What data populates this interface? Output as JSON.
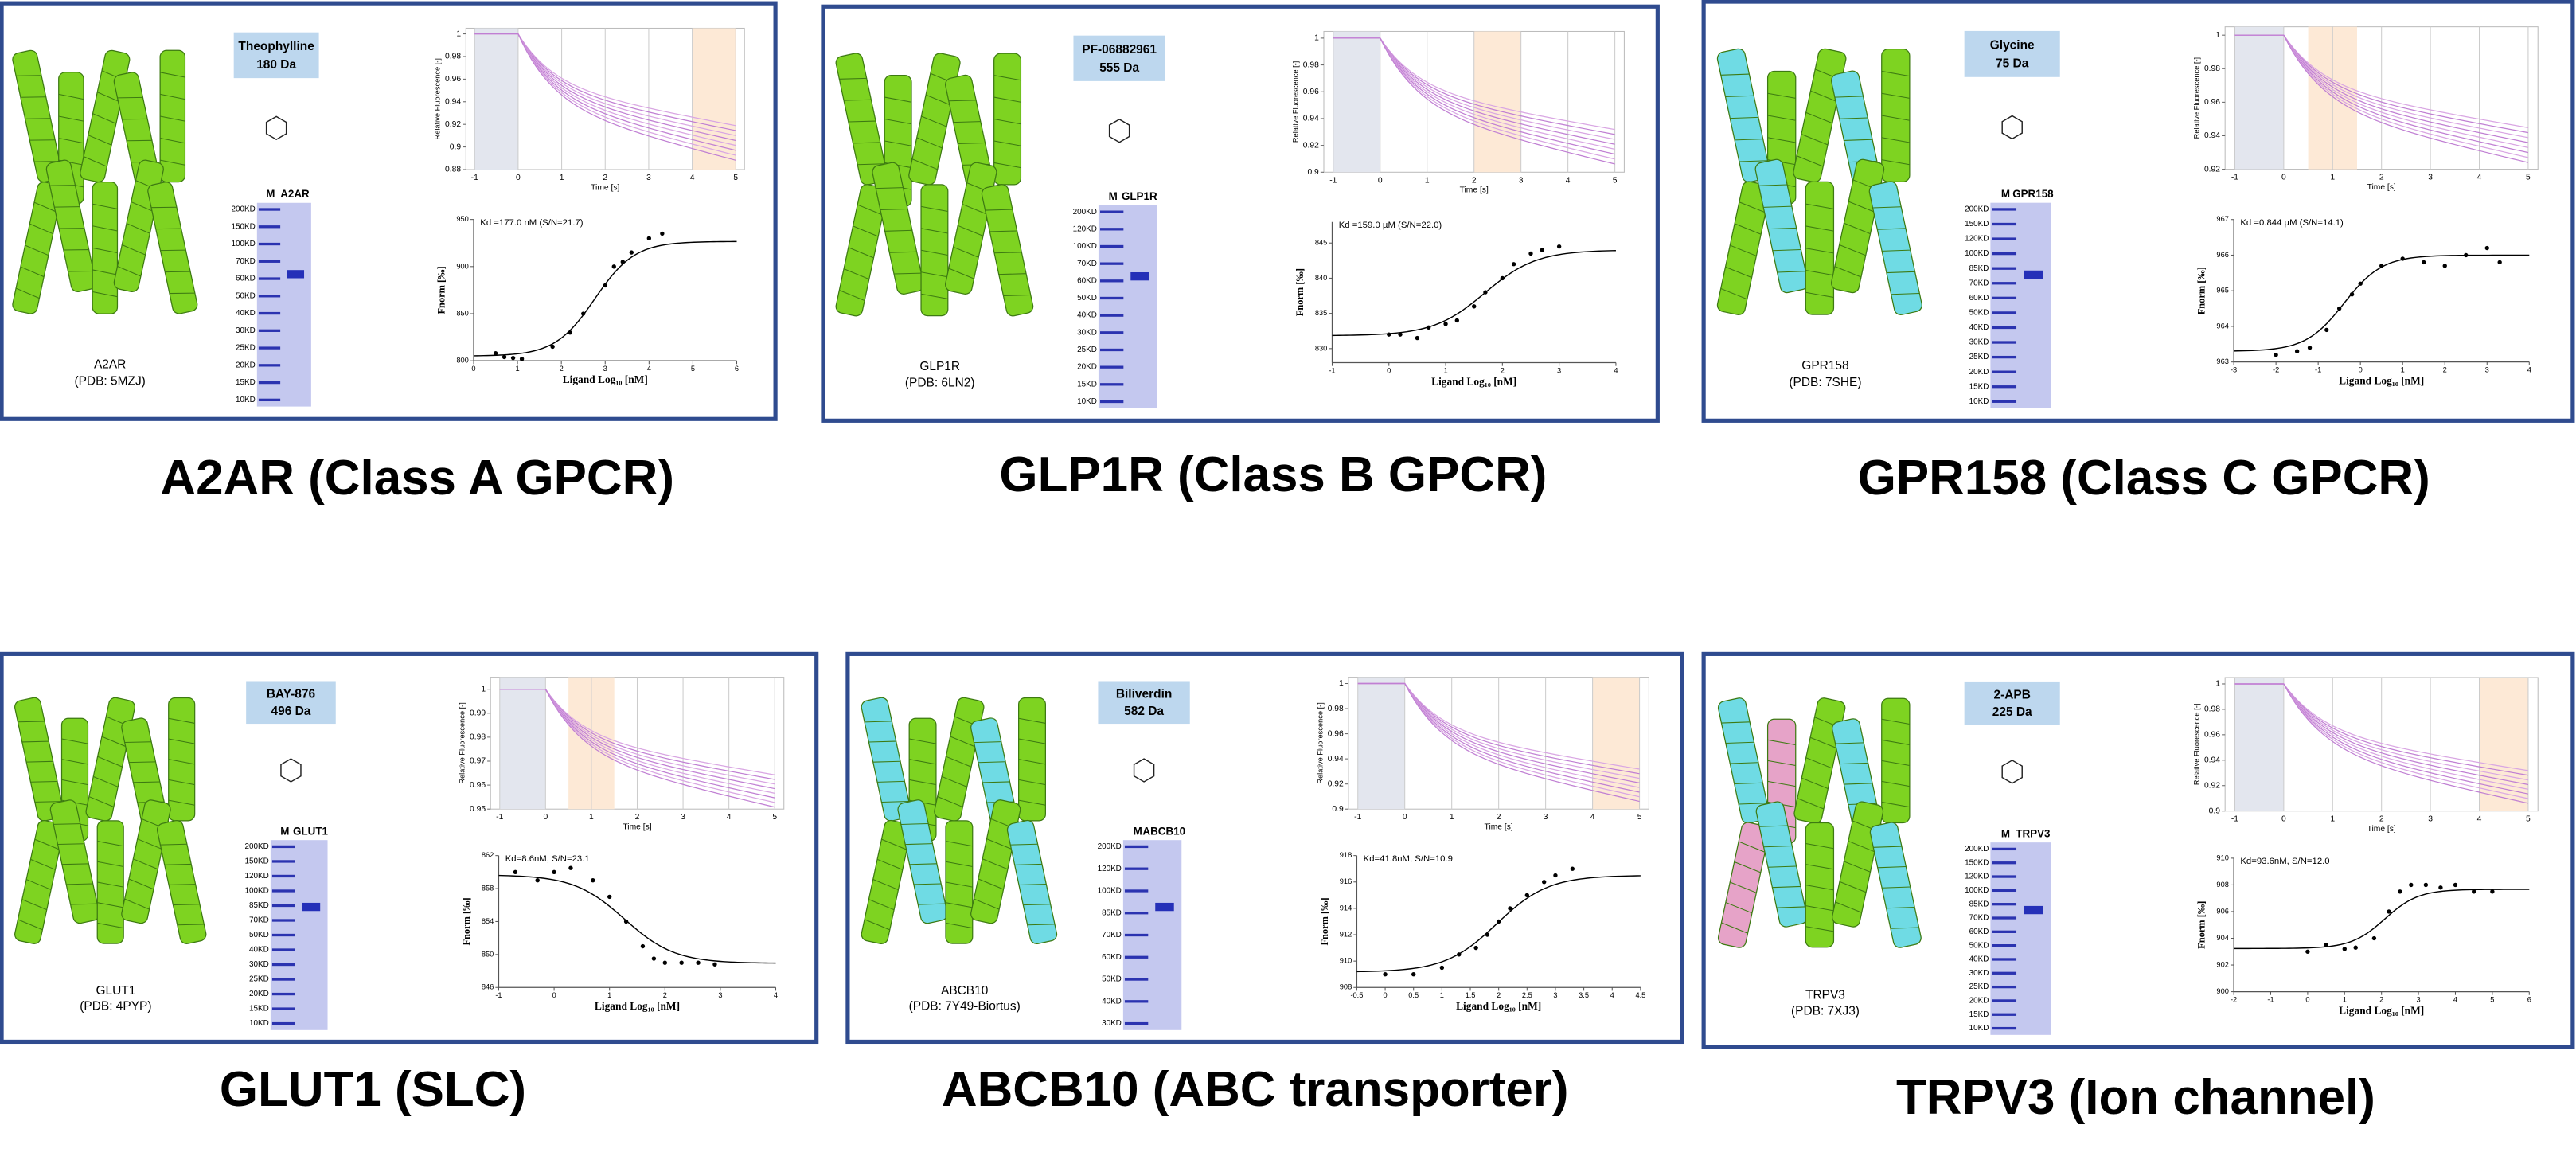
{
  "panels": [
    {
      "caption": "A2AR (Class A GPCR)",
      "protein": {
        "name": "A2AR",
        "pdb": "(PDB: 5MZJ)"
      },
      "ligand": {
        "name": "Theophylline",
        "mass": "180 Da"
      },
      "gel": {
        "lanes": [
          "M",
          "A2AR"
        ],
        "markers": [
          "200KD",
          "150KD",
          "100KD",
          "70KD",
          "60KD",
          "50KD",
          "40KD",
          "30KD",
          "25KD",
          "20KD",
          "15KD",
          "10KD"
        ]
      },
      "trace": {
        "ylabel": "Relative Fluorescence [-]",
        "xlabel": "Time [s]",
        "xlim": [
          -1.2,
          5.2
        ],
        "ylim": [
          0.88,
          1.005
        ],
        "xticks": [
          -1,
          0,
          1,
          2,
          3,
          4,
          5
        ],
        "yticks": [
          1,
          0.98,
          0.96,
          0.94,
          0.92,
          0.9,
          0.88
        ],
        "cold": [
          -1,
          0
        ],
        "hot": [
          4,
          5
        ]
      },
      "binding": {
        "kd": "Kd =177.0 nM (S/N=21.7)",
        "ylabel": "Fnorm [‰]",
        "xlabel": "Ligand Log₁₀ [nM]",
        "xlim": [
          0,
          6
        ],
        "ylim": [
          800,
          950
        ],
        "xticks": [
          0,
          1,
          2,
          3,
          4,
          5,
          6
        ],
        "yticks": [
          800,
          850,
          900,
          950
        ],
        "x": [
          0.5,
          0.7,
          0.9,
          1.1,
          1.8,
          2.2,
          2.5,
          3.0,
          3.2,
          3.4,
          3.6,
          4.0,
          4.3
        ],
        "values": [
          808,
          804,
          803,
          802,
          815,
          830,
          850,
          880,
          900,
          905,
          915,
          930,
          935
        ]
      }
    },
    {
      "caption": "GLP1R (Class B GPCR)",
      "protein": {
        "name": "GLP1R",
        "pdb": "(PDB: 6LN2)"
      },
      "ligand": {
        "name": "PF-06882961",
        "mass": "555 Da"
      },
      "gel": {
        "lanes": [
          "M",
          "GLP1R"
        ],
        "markers": [
          "200KD",
          "120KD",
          "100KD",
          "70KD",
          "60KD",
          "50KD",
          "40KD",
          "30KD",
          "25KD",
          "20KD",
          "15KD",
          "10KD"
        ]
      },
      "trace": {
        "ylabel": "Relative Fluorescence [-]",
        "xlabel": "Time [s]",
        "xlim": [
          -1.2,
          5.2
        ],
        "ylim": [
          0.9,
          1.005
        ],
        "xticks": [
          -1,
          0,
          1,
          2,
          3,
          4,
          5
        ],
        "yticks": [
          1,
          0.98,
          0.96,
          0.94,
          0.92,
          0.9
        ],
        "cold": [
          -1,
          0
        ],
        "hot": [
          2,
          3
        ]
      },
      "binding": {
        "kd": "Kd =159.0 µM (S/N=22.0)",
        "ylabel": "Fnorm [‰]",
        "xlabel": "Ligand Log₁₀ [nM]",
        "xlim": [
          -1,
          4
        ],
        "ylim": [
          828,
          848
        ],
        "xticks": [
          -1,
          0,
          1,
          2,
          3,
          4
        ],
        "yticks": [
          830,
          835,
          840,
          845
        ],
        "x": [
          0,
          0.2,
          0.5,
          0.7,
          1,
          1.2,
          1.5,
          1.7,
          2,
          2.2,
          2.5,
          2.7,
          3
        ],
        "values": [
          832,
          832,
          831.5,
          833,
          833.5,
          834,
          836,
          838,
          840,
          842,
          843.5,
          844,
          844.5
        ]
      }
    },
    {
      "caption": "GPR158 (Class C GPCR)",
      "protein": {
        "name": "GPR158",
        "pdb": "(PDB: 7SHE)"
      },
      "ligand": {
        "name": "Glycine",
        "mass": "75 Da"
      },
      "gel": {
        "lanes": [
          "M",
          "GPR158"
        ],
        "markers": [
          "200KD",
          "150KD",
          "120KD",
          "100KD",
          "85KD",
          "70KD",
          "60KD",
          "50KD",
          "40KD",
          "30KD",
          "25KD",
          "20KD",
          "15KD",
          "10KD"
        ]
      },
      "trace": {
        "ylabel": "Relative Fluorescence [-]",
        "xlabel": "Time [s]",
        "xlim": [
          -1.2,
          5.2
        ],
        "ylim": [
          0.92,
          1.005
        ],
        "xticks": [
          -1,
          0,
          1,
          2,
          3,
          4,
          5
        ],
        "yticks": [
          1,
          0.98,
          0.96,
          0.94,
          0.92
        ],
        "cold": [
          -1,
          0
        ],
        "hot": [
          0.5,
          1.5
        ]
      },
      "binding": {
        "kd": "Kd =0.844 µM (S/N=14.1)",
        "ylabel": "Fnorm [‰]",
        "xlabel": "Ligand Log₁₀ [nM]",
        "xlim": [
          -3,
          4
        ],
        "ylim": [
          963,
          967
        ],
        "xticks": [
          -3,
          -2,
          -1,
          0,
          1,
          2,
          3,
          4
        ],
        "yticks": [
          963,
          964,
          965,
          966,
          967
        ],
        "x": [
          -2,
          -1.5,
          -1.2,
          -0.8,
          -0.5,
          -0.2,
          0,
          0.5,
          1,
          1.5,
          2,
          2.5,
          3,
          3.3
        ],
        "values": [
          963.2,
          963.3,
          963.4,
          963.9,
          964.5,
          964.9,
          965.2,
          965.7,
          965.9,
          965.8,
          965.7,
          966.0,
          966.2,
          965.8
        ]
      }
    },
    {
      "caption": "GLUT1 (SLC)",
      "protein": {
        "name": "GLUT1",
        "pdb": "(PDB: 4PYP)"
      },
      "ligand": {
        "name": "BAY-876",
        "mass": "496 Da"
      },
      "gel": {
        "lanes": [
          "M",
          "GLUT1"
        ],
        "markers": [
          "200KD",
          "150KD",
          "120KD",
          "100KD",
          "85KD",
          "70KD",
          "50KD",
          "40KD",
          "30KD",
          "25KD",
          "20KD",
          "15KD",
          "10KD"
        ]
      },
      "trace": {
        "ylabel": "Relative Fluorescence [-]",
        "xlabel": "Time [s]",
        "xlim": [
          -1.2,
          5.2
        ],
        "ylim": [
          0.95,
          1.005
        ],
        "xticks": [
          -1,
          0,
          1,
          2,
          3,
          4,
          5
        ],
        "yticks": [
          1,
          0.99,
          0.98,
          0.97,
          0.96,
          0.95
        ],
        "cold": [
          -1,
          0
        ],
        "hot": [
          0.5,
          1.5
        ]
      },
      "binding": {
        "kd": "Kd=8.6nM, S/N=23.1",
        "ylabel": "Fnorm [‰]",
        "xlabel": "Ligand Log₁₀ [nM]",
        "xlim": [
          -1,
          4
        ],
        "ylim": [
          846,
          862
        ],
        "xticks": [
          -1,
          0,
          1,
          2,
          3,
          4
        ],
        "yticks": [
          846,
          850,
          854,
          858,
          862
        ],
        "x": [
          -0.7,
          -0.3,
          0,
          0.3,
          0.7,
          1,
          1.3,
          1.6,
          1.8,
          2,
          2.3,
          2.6,
          2.9
        ],
        "values": [
          860,
          859,
          860,
          860.5,
          859,
          857,
          854,
          851,
          849.5,
          849,
          849,
          849,
          848.8
        ]
      }
    },
    {
      "caption": "ABCB10 (ABC transporter)",
      "protein": {
        "name": "ABCB10",
        "pdb": "(PDB: 7Y49-Biortus)"
      },
      "ligand": {
        "name": "Biliverdin",
        "mass": "582 Da"
      },
      "gel": {
        "lanes": [
          "M",
          "ABCB10"
        ],
        "markers": [
          "200KD",
          "120KD",
          "100KD",
          "85KD",
          "70KD",
          "60KD",
          "50KD",
          "40KD",
          "30KD"
        ]
      },
      "trace": {
        "ylabel": "Relative Fluorescence [-]",
        "xlabel": "Time [s]",
        "xlim": [
          -1.2,
          5.2
        ],
        "ylim": [
          0.9,
          1.005
        ],
        "xticks": [
          -1,
          0,
          1,
          2,
          3,
          4,
          5
        ],
        "yticks": [
          1,
          0.98,
          0.96,
          0.94,
          0.92,
          0.9
        ],
        "cold": [
          -1,
          0
        ],
        "hot": [
          4,
          5
        ]
      },
      "binding": {
        "kd": "Kd=41.8nM, S/N=10.9",
        "ylabel": "Fnorm [‰]",
        "xlabel": "Ligand Log₁₀ [nM]",
        "xlim": [
          -0.5,
          4.5
        ],
        "ylim": [
          908,
          918
        ],
        "xticks": [
          -0.5,
          0,
          0.5,
          1,
          1.5,
          2,
          2.5,
          3,
          3.5,
          4,
          4.5
        ],
        "yticks": [
          908,
          910,
          912,
          914,
          916,
          918
        ],
        "x": [
          0,
          0.5,
          1,
          1.3,
          1.6,
          1.8,
          2,
          2.2,
          2.5,
          2.8,
          3,
          3.3
        ],
        "values": [
          909,
          909,
          909.5,
          910.5,
          911,
          912,
          913,
          914,
          915,
          916,
          916.5,
          917
        ]
      }
    },
    {
      "caption": "TRPV3 (Ion channel)",
      "protein": {
        "name": "TRPV3",
        "pdb": "(PDB: 7XJ3)"
      },
      "ligand": {
        "name": "2-APB",
        "mass": "225 Da"
      },
      "gel": {
        "lanes": [
          "M",
          "TRPV3"
        ],
        "markers": [
          "200KD",
          "150KD",
          "120KD",
          "100KD",
          "85KD",
          "70KD",
          "60KD",
          "50KD",
          "40KD",
          "30KD",
          "25KD",
          "20KD",
          "15KD",
          "10KD"
        ]
      },
      "trace": {
        "ylabel": "Relative Fluorescence [-]",
        "xlabel": "Time [s]",
        "xlim": [
          -1.2,
          5.2
        ],
        "ylim": [
          0.9,
          1.005
        ],
        "xticks": [
          -1,
          0,
          1,
          2,
          3,
          4,
          5
        ],
        "yticks": [
          1,
          0.98,
          0.96,
          0.94,
          0.92,
          0.9
        ],
        "cold": [
          -1,
          0
        ],
        "hot": [
          4,
          5
        ]
      },
      "binding": {
        "kd": "Kd=93.6nM, S/N=12.0",
        "ylabel": "Fnorm [‰]",
        "xlabel": "Ligand Log₁₀ [nM]",
        "xlim": [
          -2,
          6
        ],
        "ylim": [
          900,
          910
        ],
        "xticks": [
          -2,
          -1,
          0,
          1,
          2,
          3,
          4,
          5,
          6
        ],
        "yticks": [
          900,
          902,
          904,
          906,
          908,
          910
        ],
        "x": [
          0,
          0.5,
          1,
          1.3,
          1.8,
          2.2,
          2.5,
          2.8,
          3.2,
          3.6,
          4,
          4.5,
          5
        ],
        "values": [
          903,
          903.5,
          903.2,
          903.3,
          904,
          906,
          907.5,
          908,
          908,
          907.8,
          908,
          907.5,
          907.5
        ]
      }
    }
  ]
}
